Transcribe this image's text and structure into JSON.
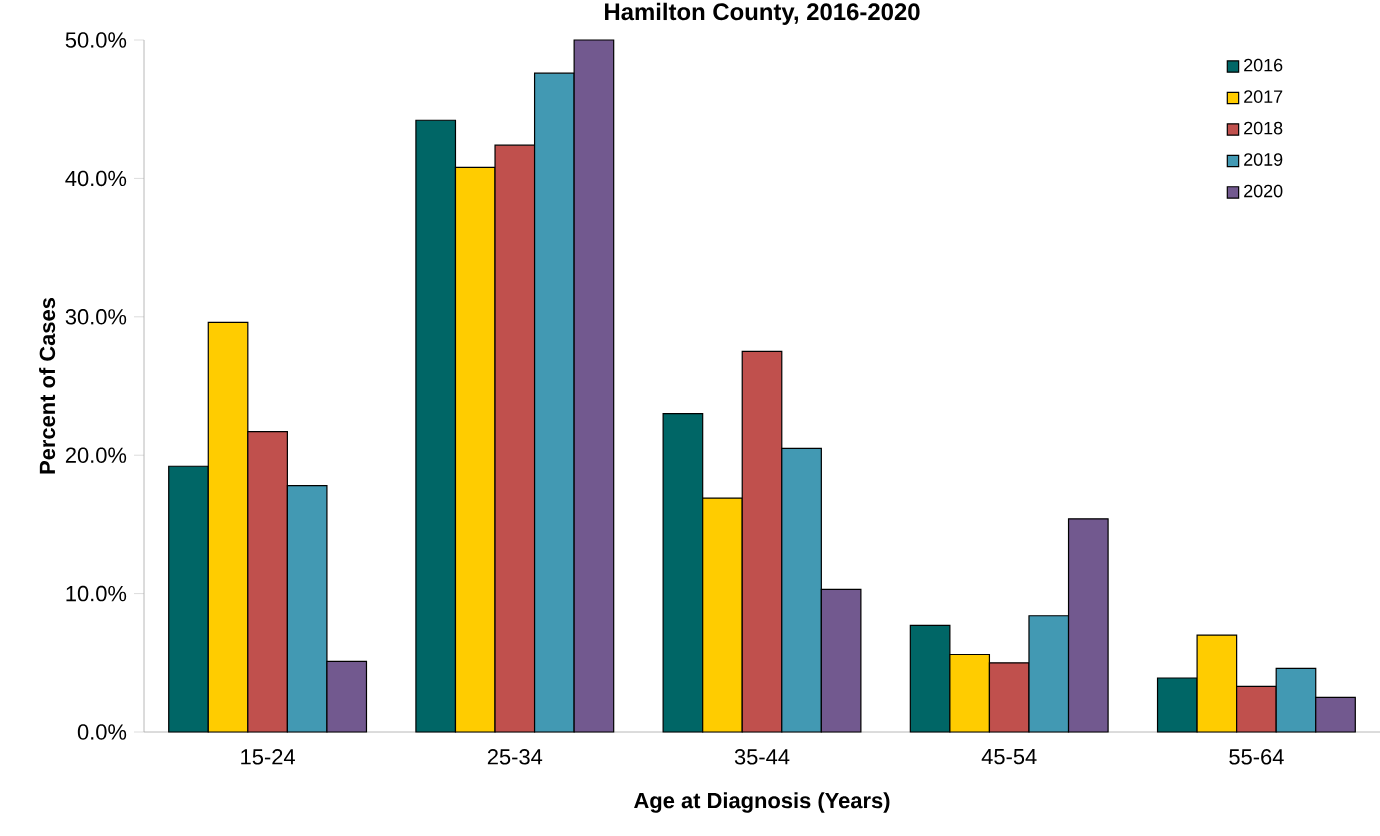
{
  "chart_data": {
    "type": "bar",
    "title": "Hamilton County, 2016-2020",
    "xlabel": "Age at Diagnosis (Years)",
    "ylabel": "Percent of Cases",
    "categories": [
      "15-24",
      "25-34",
      "35-44",
      "45-54",
      "55-64"
    ],
    "series": [
      {
        "name": "2016",
        "color": "#006666",
        "values": [
          19.2,
          44.2,
          23.0,
          7.7,
          3.9
        ]
      },
      {
        "name": "2017",
        "color": "#ffcc00",
        "values": [
          29.6,
          40.8,
          16.9,
          5.6,
          7.0
        ]
      },
      {
        "name": "2018",
        "color": "#c0504d",
        "values": [
          21.7,
          42.4,
          27.5,
          5.0,
          3.3
        ]
      },
      {
        "name": "2019",
        "color": "#4299b3",
        "values": [
          17.8,
          47.6,
          20.5,
          8.4,
          4.6
        ]
      },
      {
        "name": "2020",
        "color": "#72598f",
        "values": [
          5.1,
          50.0,
          10.3,
          15.4,
          2.5
        ]
      }
    ],
    "ylim": [
      0,
      50
    ],
    "yticks": [
      {
        "value": 0,
        "label": "0.0%"
      },
      {
        "value": 10,
        "label": "10.0%"
      },
      {
        "value": 20,
        "label": "20.0%"
      },
      {
        "value": 30,
        "label": "30.0%"
      },
      {
        "value": 40,
        "label": "40.0%"
      },
      {
        "value": 50,
        "label": "50.0%"
      }
    ],
    "grid": false,
    "legend": "top right"
  }
}
